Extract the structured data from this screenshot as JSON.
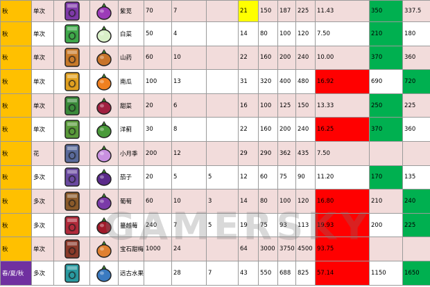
{
  "watermark": "GAMERSKY",
  "rows": [
    {
      "season": "秋",
      "harvest": "单次",
      "name": "紫苋",
      "seed_icon": "amaranth-seed-icon",
      "crop_icon": "amaranth-icon",
      "c1": "70",
      "c2": "7",
      "c3": "",
      "c4": "21",
      "c5": "150",
      "c6": "187",
      "c7": "225",
      "c8": "11.43",
      "c9": "350",
      "c10": "337.5",
      "seed_color": "#7e3aa8",
      "crop_color": "#9c3bb8",
      "hi": {
        "c4": "yellow",
        "c9": "green"
      }
    },
    {
      "season": "秋",
      "harvest": "单次",
      "name": "白菜",
      "seed_icon": "bok-choy-seed-icon",
      "crop_icon": "bok-choy-icon",
      "c1": "50",
      "c2": "4",
      "c3": "",
      "c4": "14",
      "c5": "80",
      "c6": "100",
      "c7": "120",
      "c8": "7.50",
      "c9": "210",
      "c10": "180",
      "seed_color": "#3fa84a",
      "crop_color": "#d9f0c8",
      "hi": {
        "c9": "green"
      }
    },
    {
      "season": "秋",
      "harvest": "单次",
      "name": "山药",
      "seed_icon": "yam-seed-icon",
      "crop_icon": "yam-icon",
      "c1": "60",
      "c2": "10",
      "c3": "",
      "c4": "22",
      "c5": "160",
      "c6": "200",
      "c7": "240",
      "c8": "10.00",
      "c9": "370",
      "c10": "360",
      "seed_color": "#c87a2a",
      "crop_color": "#c8742a",
      "hi": {
        "c9": "green"
      }
    },
    {
      "season": "秋",
      "harvest": "单次",
      "name": "南瓜",
      "seed_icon": "pumpkin-seed-icon",
      "crop_icon": "pumpkin-icon",
      "c1": "100",
      "c2": "13",
      "c3": "",
      "c4": "31",
      "c5": "320",
      "c6": "400",
      "c7": "480",
      "c8": "16.92",
      "c9": "690",
      "c10": "720",
      "seed_color": "#e0a020",
      "crop_color": "#f08020",
      "hi": {
        "c8": "red",
        "c10": "green"
      }
    },
    {
      "season": "秋",
      "harvest": "单次",
      "name": "甜菜",
      "seed_icon": "beet-seed-icon",
      "crop_icon": "beet-icon",
      "c1": "20",
      "c2": "6",
      "c3": "",
      "c4": "16",
      "c5": "100",
      "c6": "125",
      "c7": "150",
      "c8": "13.33",
      "c9": "250",
      "c10": "225",
      "seed_color": "#3a8a3a",
      "crop_color": "#a02040",
      "hi": {
        "c9": "green"
      }
    },
    {
      "season": "秋",
      "harvest": "单次",
      "name": "洋蓟",
      "seed_icon": "artichoke-seed-icon",
      "crop_icon": "artichoke-icon",
      "c1": "30",
      "c2": "8",
      "c3": "",
      "c4": "22",
      "c5": "160",
      "c6": "200",
      "c7": "240",
      "c8": "16.25",
      "c9": "370",
      "c10": "360",
      "seed_color": "#5a9a3a",
      "crop_color": "#4a9a3a",
      "hi": {
        "c8": "red",
        "c9": "green"
      }
    },
    {
      "season": "秋",
      "harvest": "花",
      "name": "小月季",
      "seed_icon": "fairy-seed-icon",
      "crop_icon": "fairy-rose-icon",
      "c1": "200",
      "c2": "12",
      "c3": "",
      "c4": "29",
      "c5": "290",
      "c6": "362",
      "c7": "435",
      "c8": "7.50",
      "c9": "",
      "c10": "",
      "seed_color": "#5a6a9a",
      "crop_color": "#c890e0",
      "hi": {}
    },
    {
      "season": "秋",
      "harvest": "多次",
      "name": "茄子",
      "seed_icon": "eggplant-seed-icon",
      "crop_icon": "eggplant-icon",
      "c1": "20",
      "c2": "5",
      "c3": "5",
      "c4": "12",
      "c5": "60",
      "c6": "75",
      "c7": "90",
      "c8": "11.20",
      "c9": "170",
      "c10": "135",
      "seed_color": "#6a4aa0",
      "crop_color": "#5a2a8a",
      "hi": {
        "c9": "green"
      }
    },
    {
      "season": "秋",
      "harvest": "多次",
      "name": "葡萄",
      "seed_icon": "grape-starter-icon",
      "crop_icon": "grape-icon",
      "c1": "60",
      "c2": "10",
      "c3": "3",
      "c4": "14",
      "c5": "80",
      "c6": "100",
      "c7": "120",
      "c8": "16.80",
      "c9": "210",
      "c10": "240",
      "seed_color": "#8a5a2a",
      "crop_color": "#7a3aa8",
      "hi": {
        "c8": "red",
        "c10": "green"
      }
    },
    {
      "season": "秋",
      "harvest": "多次",
      "name": "蔓越莓",
      "seed_icon": "cranberry-seed-icon",
      "crop_icon": "cranberry-icon",
      "c1": "240",
      "c2": "7",
      "c3": "5",
      "c4": "19",
      "c5": "75",
      "c6": "93",
      "c7": "113",
      "c8": "19.93",
      "c9": "200",
      "c10": "225",
      "seed_color": "#b02a3a",
      "crop_color": "#a01a2a",
      "hi": {
        "c8": "red",
        "c10": "green"
      }
    },
    {
      "season": "秋",
      "harvest": "单次",
      "name": "宝石甜梅",
      "seed_icon": "rare-seed-icon",
      "crop_icon": "sweet-gem-berry-icon",
      "c1": "1000",
      "c2": "24",
      "c3": "",
      "c4": "64",
      "c5": "3000",
      "c6": "3750",
      "c7": "4500",
      "c8": "93.75",
      "c9": "",
      "c10": "",
      "seed_color": "#8a3a2a",
      "crop_color": "#e08030",
      "hi": {
        "c8": "red"
      }
    },
    {
      "season": "春/夏/秋",
      "harvest": "多次",
      "name": "远古水果",
      "seed_icon": "ancient-seed-icon",
      "crop_icon": "ancient-fruit-icon",
      "c1": "",
      "c2": "28",
      "c3": "7",
      "c4": "43",
      "c5": "550",
      "c6": "688",
      "c7": "825",
      "c8": "57.14",
      "c9": "1150",
      "c10": "1650",
      "seed_color": "#2a9aa0",
      "crop_color": "#3a7ac0",
      "hi": {
        "c8": "red",
        "c10": "green"
      }
    }
  ]
}
